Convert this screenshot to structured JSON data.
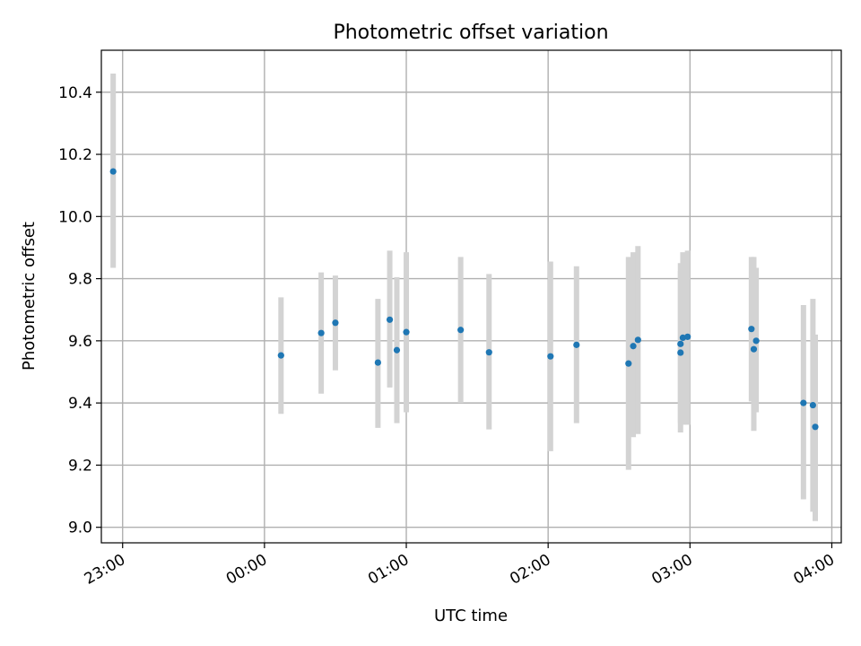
{
  "chart_data": {
    "type": "scatter",
    "title": "Photometric offset variation",
    "xlabel": "UTC time",
    "ylabel": "Photometric offset",
    "xlim": [
      "22:51",
      "04:04"
    ],
    "ylim": [
      8.95,
      10.535
    ],
    "grid": true,
    "x_ticks": [
      "23:00",
      "00:00",
      "01:00",
      "02:00",
      "03:00",
      "04:00"
    ],
    "y_ticks": [
      "9.0",
      "9.2",
      "9.4",
      "9.6",
      "9.8",
      "10.0",
      "10.2",
      "10.4"
    ],
    "colors": {
      "point": "#1f77b4",
      "errorbar": "#d3d3d3",
      "grid": "#b0b0b0"
    },
    "series": [
      {
        "x": [
          "22:56",
          "00:07",
          "00:24",
          "00:30",
          "00:48",
          "00:53",
          "00:56",
          "01:00",
          "01:23",
          "01:35",
          "02:01",
          "02:12",
          "02:34",
          "02:36",
          "02:38",
          "02:56",
          "02:56",
          "02:57",
          "02:59",
          "03:26",
          "03:27",
          "03:28",
          "03:48",
          "03:52",
          "03:53"
        ],
        "y": [
          10.145,
          9.553,
          9.625,
          9.658,
          9.53,
          9.668,
          9.57,
          9.628,
          9.635,
          9.563,
          9.55,
          9.587,
          9.527,
          9.583,
          9.603,
          9.59,
          9.562,
          9.61,
          9.613,
          9.638,
          9.573,
          9.6,
          9.4,
          9.393,
          9.323
        ],
        "yerr_low": [
          9.835,
          9.365,
          9.43,
          9.505,
          9.32,
          9.45,
          9.335,
          9.37,
          9.4,
          9.315,
          9.245,
          9.335,
          9.185,
          9.29,
          9.3,
          9.335,
          9.305,
          9.33,
          9.33,
          9.405,
          9.31,
          9.37,
          9.09,
          9.05,
          9.02
        ],
        "yerr_high": [
          10.46,
          9.74,
          9.82,
          9.81,
          9.735,
          9.89,
          9.805,
          9.885,
          9.87,
          9.815,
          9.855,
          9.84,
          9.87,
          9.885,
          9.905,
          9.85,
          9.825,
          9.885,
          9.89,
          9.87,
          9.87,
          9.835,
          9.715,
          9.735,
          9.62
        ]
      }
    ]
  }
}
